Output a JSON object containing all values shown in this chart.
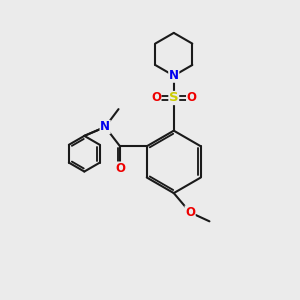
{
  "bg_color": "#ebebeb",
  "bond_color": "#1a1a1a",
  "N_color": "#0000ee",
  "O_color": "#ee0000",
  "S_color": "#cccc00",
  "line_width": 1.5,
  "font_size_atom": 8.5,
  "figsize": [
    3.0,
    3.0
  ],
  "dpi": 100,
  "xlim": [
    0,
    10
  ],
  "ylim": [
    0,
    10
  ]
}
